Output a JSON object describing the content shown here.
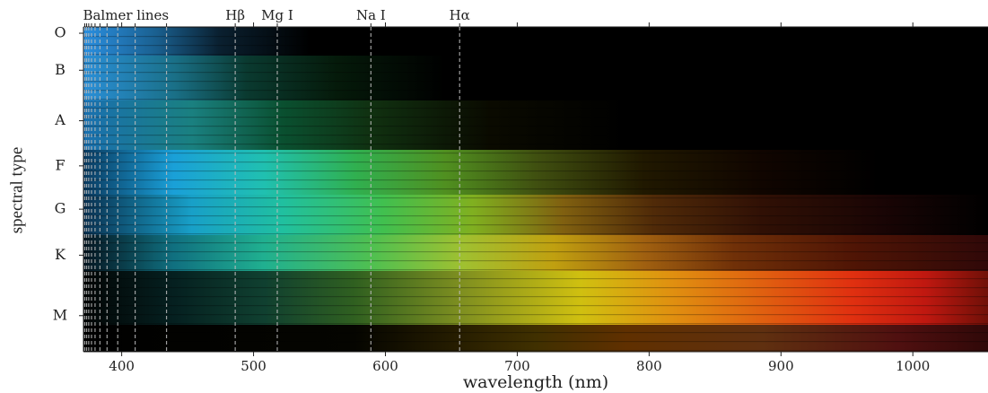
{
  "chart_data": {
    "type": "spectral-image",
    "xlabel": "wavelength (nm)",
    "ylabel": "spectral type",
    "xlim": [
      371,
      1057
    ],
    "xticks": [
      400,
      500,
      600,
      700,
      800,
      900,
      1000
    ],
    "ylim": [
      0,
      36
    ],
    "yticks": [
      {
        "value": 0.7,
        "label": "O"
      },
      {
        "value": 4.8,
        "label": "B"
      },
      {
        "value": 10.4,
        "label": "A"
      },
      {
        "value": 15.4,
        "label": "F"
      },
      {
        "value": 20.2,
        "label": "G"
      },
      {
        "value": 25.3,
        "label": "K"
      },
      {
        "value": 32,
        "label": "M"
      }
    ],
    "lines": [
      {
        "label": "Balmer lines",
        "wavelengths": [
          372,
          373.4,
          375,
          377.1,
          379.8,
          383.5,
          388.9,
          397,
          410.2,
          434
        ]
      },
      {
        "label": "Hβ",
        "wavelengths": [
          486.1
        ]
      },
      {
        "label": "Mg I",
        "wavelengths": [
          518
        ]
      },
      {
        "label": "Na I",
        "wavelengths": [
          589
        ]
      },
      {
        "label": "Hα",
        "wavelengths": [
          656.3
        ]
      }
    ]
  }
}
